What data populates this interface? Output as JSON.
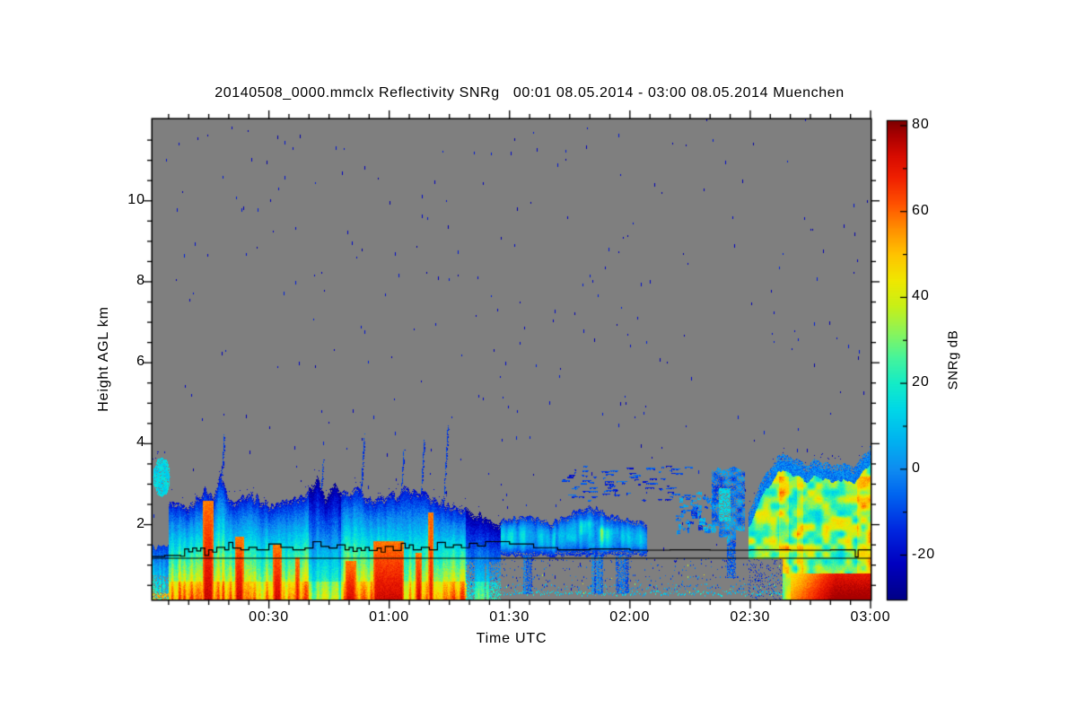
{
  "figure": {
    "title": "20140508_0000.mmclx Reflectivity SNRg   00:01 08.05.2014 - 03:00 08.05.2014 Muenchen",
    "background": "#ffffff"
  },
  "chart_data": {
    "type": "heatmap",
    "title": "20140508_0000.mmclx Reflectivity SNRg   00:01 08.05.2014 - 03:00 08.05.2014 Muenchen",
    "xlabel": "Time UTC",
    "ylabel": "Height AGL km",
    "colorbar_label": "SNRg dB",
    "station": "Muenchen",
    "time_span": "00:01 08.05.2014 - 03:00 08.05.2014",
    "x_range_minutes": [
      1,
      180
    ],
    "x_tick_minutes": [
      30,
      60,
      90,
      120,
      150,
      180
    ],
    "x_tick_labels": [
      "00:30",
      "01:00",
      "01:30",
      "02:00",
      "02:30",
      "03:00"
    ],
    "x_minor_step_minutes": 5,
    "y_range_km": [
      0.15,
      12.0
    ],
    "y_ticks_km": [
      2,
      4,
      6,
      8,
      10
    ],
    "y_tick_labels": [
      "2",
      "4",
      "6",
      "8",
      "10"
    ],
    "y_minor_step_km": 0.5,
    "colorbar_range_db": [
      -30,
      81
    ],
    "colorbar_ticks_db": [
      80,
      60,
      40,
      20,
      0,
      -20
    ],
    "colorbar_tick_labels": [
      "80",
      "60",
      "40",
      "20",
      "0",
      "-20"
    ],
    "colorbar_minor_step_db": 10,
    "nodata_color": "#7f7f7f",
    "speck_color_note": "sparse dark-blue noise pixels scattered in no-data region",
    "colormap_anchors": [
      [
        -30,
        "#000089"
      ],
      [
        -22,
        "#0000c0"
      ],
      [
        -14,
        "#0028e0"
      ],
      [
        -6,
        "#0064f0"
      ],
      [
        0,
        "#0f8cf0"
      ],
      [
        7,
        "#00b4f0"
      ],
      [
        14,
        "#00d8e8"
      ],
      [
        20,
        "#14ecc8"
      ],
      [
        26,
        "#46f49c"
      ],
      [
        32,
        "#8cf45a"
      ],
      [
        38,
        "#c8f018"
      ],
      [
        44,
        "#f0e800"
      ],
      [
        50,
        "#ffc400"
      ],
      [
        56,
        "#ff9000"
      ],
      [
        62,
        "#ff5000"
      ],
      [
        68,
        "#f02000"
      ],
      [
        73,
        "#d80c00"
      ],
      [
        78,
        "#a80000"
      ],
      [
        81,
        "#800000"
      ]
    ],
    "field_summary": [
      "Rain period 00:06-00:40 UTC: echo tops 2.4-3.3 km, surface SNRg up to ~75 dB (dark red shafts at 00:14-00:16, 00:22, 00:31-00:33)",
      "Weaker cell 00:40-00:48: tops to 3.2 km, mostly 10-40 dB",
      "Rain period 00:48-01:19: tops 2.4-2.9 km, dark red shafts 00:56-01:04 and 01:07, thin spikes to 4.2-4.5 km",
      "Decaying echo 01:19-01:28, tops ~2 km",
      "Drizzle/stratus layer 01:28-02:04 between ~1.2 and 2.4 km, 0-25 dB, speckly sub-cloud returns below 1 km",
      "Scattered mid-level wisps 2.6-3.4 km between 01:44 and 02:15",
      "Blue cloud patches 02:12-02:28, hanging curtain to 0.7 km around 02:25",
      "Large echo 02:30-03:00: tops rising to ~3.9 km, 30-50 dB interior, surface layer >70 dB after 02:50",
      "Two black overlay lines: constant level ~1.17 km and stepped line ~1.2-1.6 km with V-notch near 02:57"
    ],
    "field_model": {
      "seed": 42,
      "ambient_specks": 330,
      "speck_db": [
        -26,
        -15
      ],
      "noise_rows": {
        "t_range": [
          79,
          158
        ],
        "bands": [
          {
            "km": [
              0.26,
              0.38
            ],
            "density": 0.8,
            "db": [
              4,
              22
            ],
            "bright_prob": 0.03
          },
          {
            "km": [
              0.4,
              0.56
            ],
            "density": 0.55,
            "db": [
              -16,
              14
            ],
            "bright_prob": 0.05
          },
          {
            "km": [
              0.62,
              0.78
            ],
            "density": 0.32,
            "db": [
              -18,
              6
            ],
            "bright_prob": 0.03
          },
          {
            "km": [
              0.88,
              1.05
            ],
            "density": 0.2,
            "db": [
              -20,
              0
            ],
            "bright_prob": 0.015
          },
          {
            "km": [
              1.1,
              1.17
            ],
            "density": 0.1,
            "db": [
              -20,
              -6
            ],
            "bright_prob": 0
          }
        ]
      },
      "left_blob": {
        "t": [
          0.9,
          5.3
        ],
        "km": [
          2.75,
          3.62
        ],
        "db": 14
      },
      "weak_low": {
        "t": [
          0.9,
          5.2
        ],
        "top_km": 1.45,
        "surf_db": 36
      },
      "rain_events": [
        {
          "t": [
            5,
            40
          ],
          "surf_db": 62,
          "blue_shift": 0,
          "top_pts": [
            [
              5,
              2.5
            ],
            [
              10,
              2.45
            ],
            [
              14,
              2.9
            ],
            [
              16,
              2.7
            ],
            [
              18,
              3.3
            ],
            [
              20,
              2.6
            ],
            [
              25,
              2.8
            ],
            [
              30,
              2.5
            ],
            [
              34,
              2.6
            ],
            [
              40,
              2.85
            ]
          ],
          "shafts": [
            [
              13.5,
              16,
              2.6
            ],
            [
              21.5,
              23.5,
              1.7
            ],
            [
              31,
              33,
              1.5
            ],
            [
              36.5,
              37.5,
              1.2
            ]
          ],
          "spikes": [
            [
              18.2,
              4.25
            ]
          ]
        },
        {
          "t": [
            40,
            48
          ],
          "surf_db": 42,
          "blue_shift": 10,
          "top_pts": [
            [
              40,
              2.85
            ],
            [
              42,
              3.25
            ],
            [
              44,
              2.6
            ],
            [
              46,
              3.05
            ],
            [
              48,
              2.75
            ]
          ],
          "shafts": [],
          "spikes": [
            [
              43,
              3.6
            ]
          ]
        },
        {
          "t": [
            48,
            79
          ],
          "surf_db": 64,
          "blue_shift": 0,
          "top_pts": [
            [
              48,
              2.75
            ],
            [
              52,
              2.9
            ],
            [
              56,
              2.6
            ],
            [
              60,
              2.7
            ],
            [
              64,
              2.9
            ],
            [
              68,
              2.8
            ],
            [
              72,
              2.6
            ],
            [
              75,
              2.5
            ],
            [
              79,
              2.4
            ]
          ],
          "shafts": [
            [
              49,
              51.5,
              1.1
            ],
            [
              56,
              63.5,
              1.6
            ],
            [
              66.5,
              68,
              1.3
            ],
            [
              69.8,
              70.8,
              2.3
            ]
          ],
          "spikes": [
            [
              53,
              4.25
            ],
            [
              63,
              3.85
            ],
            [
              68,
              4.1
            ],
            [
              73.6,
              4.45
            ]
          ]
        },
        {
          "t": [
            79,
            87.5
          ],
          "surf_db": 30,
          "blue_shift": 8,
          "top_pts": [
            [
              79,
              2.4
            ],
            [
              83,
              2.25
            ],
            [
              87.5,
              2.0
            ]
          ],
          "shafts": [],
          "spikes": [],
          "gappy_below_km": 1.1
        }
      ],
      "layer": {
        "t": [
          87.5,
          124
        ],
        "base_km": 1.25,
        "top_pts": [
          [
            87.5,
            2.1
          ],
          [
            95,
            2.25
          ],
          [
            100,
            2.05
          ],
          [
            105,
            2.3
          ],
          [
            110,
            2.45
          ],
          [
            115,
            2.25
          ],
          [
            120,
            2.1
          ],
          [
            124,
            2.0
          ]
        ],
        "core_db": 14,
        "bright_t": [
          104,
          117
        ],
        "down_cols": [
          [
            93.5,
            95.5
          ],
          [
            110.5,
            113.2
          ],
          [
            116.5,
            119.5
          ]
        ]
      },
      "wisps": {
        "t": [
          103,
          134
        ],
        "km": [
          2.6,
          3.45
        ],
        "count": 85,
        "db": [
          -18,
          -2
        ]
      },
      "clumps": {
        "t": [
          131.5,
          140.5
        ],
        "km": [
          1.8,
          2.8
        ],
        "count": 60,
        "db": [
          -16,
          10
        ]
      },
      "curtain": {
        "t": [
          140.5,
          148.5
        ],
        "top_km": 3.35,
        "core_db": 16,
        "tail_t": [
          144,
          146.3
        ],
        "tail_km": 0.7
      },
      "big_echo": {
        "t": [
          149.5,
          180
        ],
        "top_pts": [
          [
            149.5,
            2.3
          ],
          [
            153,
            3.1
          ],
          [
            156,
            3.6
          ],
          [
            158,
            3.8
          ],
          [
            161,
            3.6
          ],
          [
            164,
            3.5
          ],
          [
            167,
            3.62
          ],
          [
            170,
            3.45
          ],
          [
            173,
            3.55
          ],
          [
            176,
            3.4
          ],
          [
            178,
            3.72
          ],
          [
            180,
            3.92
          ]
        ],
        "gap_below_km": 1.15,
        "gap_until_t": 158,
        "surf_red_t": 160,
        "dark_red_t": 171,
        "orange_streaks": [
          [
            157,
            159.5
          ],
          [
            161.5,
            163
          ],
          [
            176.5,
            180
          ]
        ]
      },
      "lines_km": {
        "flat": 1.17,
        "stepped": [
          [
            0,
            1.21
          ],
          [
            4,
            1.24
          ],
          [
            8,
            1.22
          ],
          [
            9,
            1.4
          ],
          [
            10,
            1.33
          ],
          [
            11,
            1.42
          ],
          [
            12,
            1.35
          ],
          [
            13,
            1.42
          ],
          [
            14,
            1.24
          ],
          [
            15,
            1.38
          ],
          [
            16,
            1.32
          ],
          [
            17,
            1.44
          ],
          [
            19,
            1.38
          ],
          [
            20,
            1.56
          ],
          [
            21,
            1.42
          ],
          [
            23,
            1.38
          ],
          [
            25,
            1.44
          ],
          [
            27,
            1.38
          ],
          [
            30,
            1.52
          ],
          [
            33,
            1.44
          ],
          [
            36,
            1.38
          ],
          [
            39,
            1.42
          ],
          [
            41,
            1.58
          ],
          [
            43,
            1.46
          ],
          [
            45,
            1.42
          ],
          [
            47,
            1.5
          ],
          [
            49,
            1.38
          ],
          [
            50,
            1.44
          ],
          [
            51,
            1.34
          ],
          [
            52,
            1.42
          ],
          [
            53,
            1.36
          ],
          [
            54,
            1.44
          ],
          [
            55,
            1.36
          ],
          [
            57,
            1.42
          ],
          [
            58,
            1.32
          ],
          [
            59,
            1.46
          ],
          [
            61,
            1.36
          ],
          [
            63,
            1.54
          ],
          [
            64,
            1.42
          ],
          [
            65,
            1.5
          ],
          [
            66,
            1.38
          ],
          [
            68,
            1.44
          ],
          [
            70,
            1.38
          ],
          [
            72,
            1.56
          ],
          [
            74,
            1.44
          ],
          [
            76,
            1.5
          ],
          [
            78,
            1.43
          ],
          [
            80,
            1.54
          ],
          [
            82,
            1.47
          ],
          [
            84,
            1.58
          ],
          [
            90,
            1.52
          ],
          [
            96,
            1.43
          ],
          [
            102,
            1.38
          ],
          [
            110,
            1.4
          ],
          [
            120,
            1.37
          ],
          [
            130,
            1.38
          ],
          [
            140,
            1.37
          ],
          [
            150,
            1.38
          ],
          [
            160,
            1.37
          ],
          [
            170,
            1.38
          ],
          [
            175.8,
            1.38
          ],
          [
            176.2,
            1.2
          ],
          [
            176.9,
            1.38
          ],
          [
            180,
            1.38
          ]
        ]
      }
    }
  }
}
